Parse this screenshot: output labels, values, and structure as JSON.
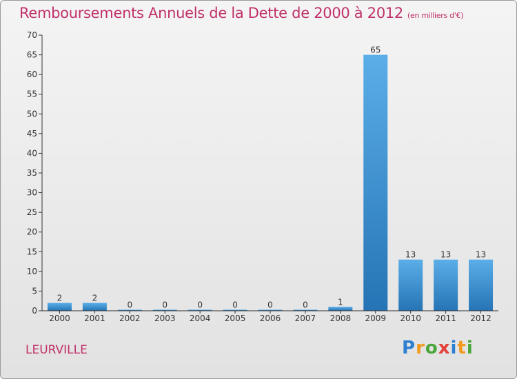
{
  "header": {
    "title": "Remboursements Annuels de la Dette de 2000 à 2012",
    "unit": "(en milliers d'€)"
  },
  "footer": {
    "place": "LEURVILLE",
    "logo": "Proxiti"
  },
  "colors": {
    "title": "#c0306a",
    "bar_top": "#5baee8",
    "bar_bottom": "#2574b5",
    "axis": "#333333"
  },
  "chart_data": {
    "type": "bar",
    "title": "Remboursements Annuels de la Dette de 2000 à 2012",
    "subtitle": "(en milliers d'€)",
    "xlabel": "",
    "ylabel": "",
    "categories": [
      "2000",
      "2001",
      "2002",
      "2003",
      "2004",
      "2005",
      "2006",
      "2007",
      "2008",
      "2009",
      "2010",
      "2011",
      "2012"
    ],
    "values": [
      2,
      2,
      0,
      0,
      0,
      0,
      0,
      0,
      1,
      65,
      13,
      13,
      13
    ],
    "ylim": [
      0,
      70
    ],
    "yticks": [
      0,
      5,
      10,
      15,
      20,
      25,
      30,
      35,
      40,
      45,
      50,
      55,
      60,
      65,
      70
    ],
    "grid": false,
    "data_labels": true
  }
}
